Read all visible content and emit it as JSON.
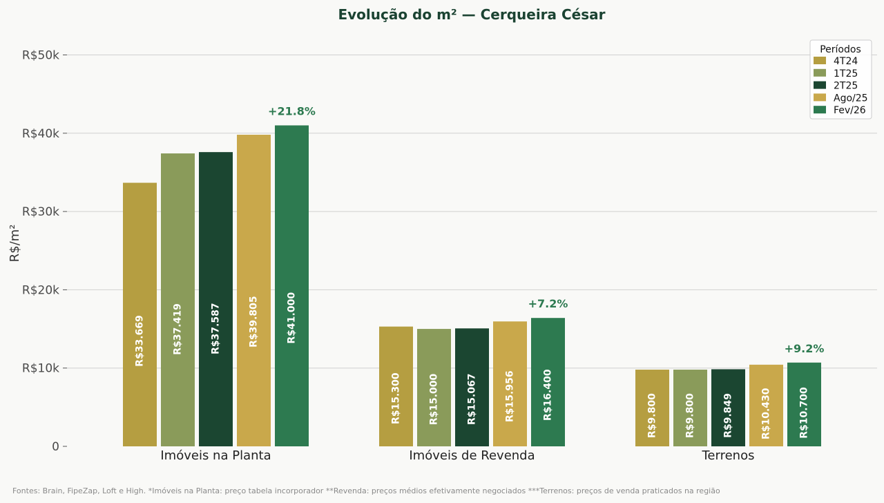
{
  "chart_data": {
    "type": "bar",
    "title": "Evolução do m² — Cerqueira César",
    "xlabel": "",
    "ylabel": "R$/m²",
    "ylim": [
      0,
      53000
    ],
    "yticks": [
      0,
      10000,
      20000,
      30000,
      40000,
      50000
    ],
    "ytick_labels": [
      "0",
      "R$10k",
      "R$20k",
      "R$30k",
      "R$40k",
      "R$50k"
    ],
    "grid": "horizontal",
    "legend_title": "Períodos",
    "legend_position": "top-right",
    "categories": [
      "Imóveis na Planta",
      "Imóveis de Revenda",
      "Terrenos"
    ],
    "series": [
      {
        "name": "4T24",
        "color": "#b59e41",
        "values": [
          33669,
          15300,
          9800
        ],
        "labels": [
          "R$33.669",
          "R$15.300",
          "R$9.800"
        ]
      },
      {
        "name": "1T25",
        "color": "#8a9b5a",
        "values": [
          37419,
          15000,
          9800
        ],
        "labels": [
          "R$37.419",
          "R$15.000",
          "R$9.800"
        ]
      },
      {
        "name": "2T25",
        "color": "#1b4631",
        "values": [
          37587,
          15067,
          9849
        ],
        "labels": [
          "R$37.587",
          "R$15.067",
          "R$9.849"
        ]
      },
      {
        "name": "Ago/25",
        "color": "#c9a84b",
        "values": [
          39805,
          15956,
          10430
        ],
        "labels": [
          "R$39.805",
          "R$15.956",
          "R$10.430"
        ]
      },
      {
        "name": "Fev/26",
        "color": "#2d7a50",
        "values": [
          41000,
          16400,
          10700
        ],
        "labels": [
          "R$41.000",
          "R$16.400",
          "R$10.700"
        ]
      }
    ],
    "annotations": [
      "+21.8%",
      "+7.2%",
      "+9.2%"
    ]
  },
  "footer": "Fontes: Brain, FipeZap, Loft e High.  *Imóveis na Planta: preço tabela incorporador   **Revenda: preços médios efetivamente negociados   ***Terrenos: preços de venda praticados na região"
}
